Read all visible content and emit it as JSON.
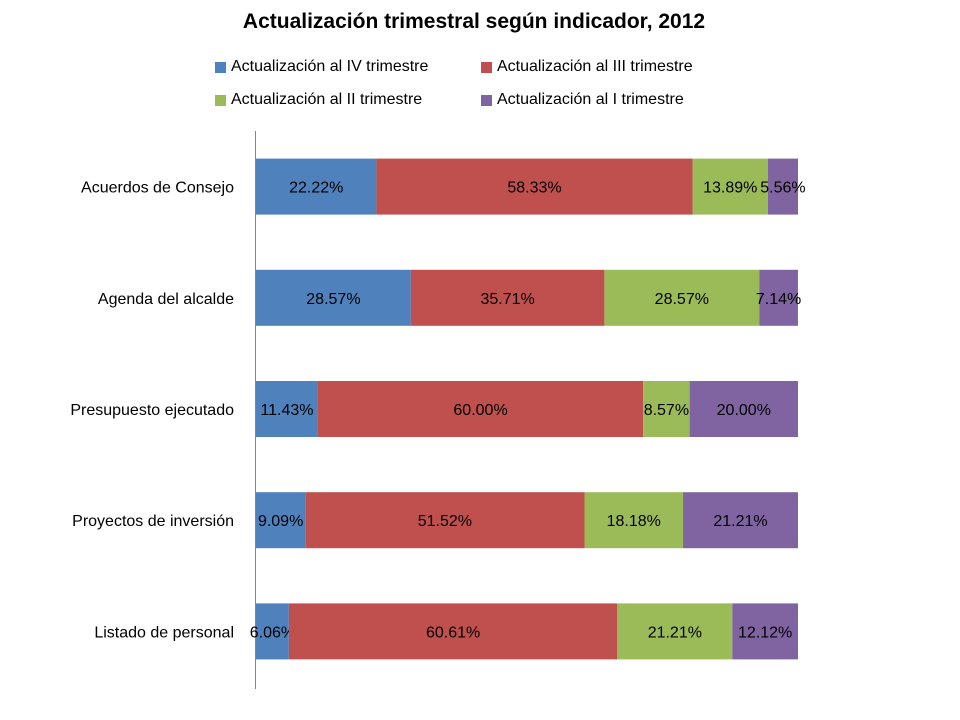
{
  "chart_data": {
    "type": "bar",
    "orientation": "horizontal",
    "stacked": "100%",
    "title": "Actualización trimestral según indicador, 2012",
    "categories": [
      "Acuerdos de Consejo",
      "Agenda del alcalde",
      "Presupuesto ejecutado",
      "Proyectos de inversión",
      "Listado de personal"
    ],
    "series": [
      {
        "name": "Actualización al IV trimestre",
        "color": "#4F81BD",
        "values": [
          22.22,
          28.57,
          11.43,
          9.09,
          6.06
        ],
        "labels": [
          "22.22%",
          "28.57%",
          "11.43%",
          "9.09%",
          "6.06%"
        ]
      },
      {
        "name": "Actualización al III trimestre",
        "color": "#C0504D",
        "values": [
          58.33,
          35.71,
          60.0,
          51.52,
          60.61
        ],
        "labels": [
          "58.33%",
          "35.71%",
          "60.00%",
          "51.52%",
          "60.61%"
        ]
      },
      {
        "name": "Actualización al II trimestre",
        "color": "#9BBB59",
        "values": [
          13.89,
          28.57,
          8.57,
          18.18,
          21.21
        ],
        "labels": [
          "13.89%",
          "28.57%",
          "8.57%",
          "18.18%",
          "21.21%"
        ]
      },
      {
        "name": "Actualización al I trimestre",
        "color": "#8064A2",
        "values": [
          5.56,
          7.14,
          20.0,
          21.21,
          12.12
        ],
        "labels": [
          "5.56%",
          "7.14%",
          "20.00%",
          "21.21%",
          "12.12%"
        ]
      }
    ],
    "xlim": [
      0,
      100
    ],
    "grid": false,
    "legend_position": "top"
  }
}
